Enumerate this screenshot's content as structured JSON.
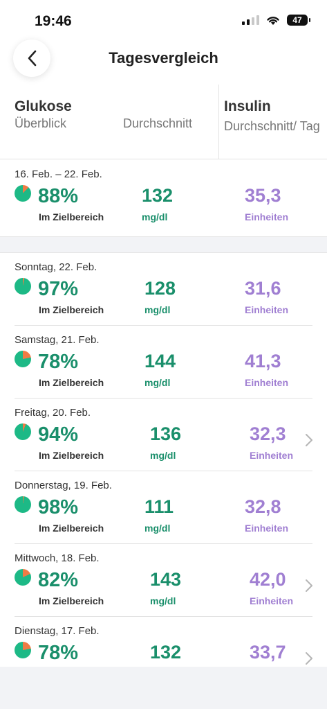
{
  "status": {
    "time": "19:46",
    "battery": "47"
  },
  "nav": {
    "title": "Tagesvergleich"
  },
  "columns": {
    "glukose": "Glukose",
    "ueberblick": "Überblick",
    "durchschnitt": "Durchschnitt",
    "insulin": "Insulin",
    "insulin_sub": "Durchschnitt/ Tag"
  },
  "colors": {
    "green": "#1a8f6b",
    "purple": "#a07fd2",
    "orange": "#ef7b45",
    "pie_green": "#1db986"
  },
  "units": {
    "range": "Im Zielbereich",
    "glucose": "mg/dl",
    "insulin": "Einheiten"
  },
  "week": {
    "date": "16. Feb. – 22. Feb.",
    "range_pct": "88%",
    "range_fraction": 0.88,
    "avg": "132",
    "insulin": "35,3"
  },
  "days": [
    {
      "date": "Sonntag, 22. Feb.",
      "range_pct": "97%",
      "range_fraction": 0.97,
      "avg": "128",
      "insulin": "31,6",
      "chevron": false
    },
    {
      "date": "Samstag, 21. Feb.",
      "range_pct": "78%",
      "range_fraction": 0.78,
      "avg": "144",
      "insulin": "41,3",
      "chevron": false
    },
    {
      "date": "Freitag, 20. Feb.",
      "range_pct": "94%",
      "range_fraction": 0.94,
      "avg": "136",
      "insulin": "32,3",
      "chevron": true
    },
    {
      "date": "Donnerstag, 19. Feb.",
      "range_pct": "98%",
      "range_fraction": 0.98,
      "avg": "111",
      "insulin": "32,8",
      "chevron": false
    },
    {
      "date": "Mittwoch, 18. Feb.",
      "range_pct": "82%",
      "range_fraction": 0.82,
      "avg": "143",
      "insulin": "42,0",
      "chevron": true
    },
    {
      "date": "Dienstag, 17. Feb.",
      "range_pct": "78%",
      "range_fraction": 0.78,
      "avg": "132",
      "insulin": "33,7",
      "chevron": true
    }
  ]
}
